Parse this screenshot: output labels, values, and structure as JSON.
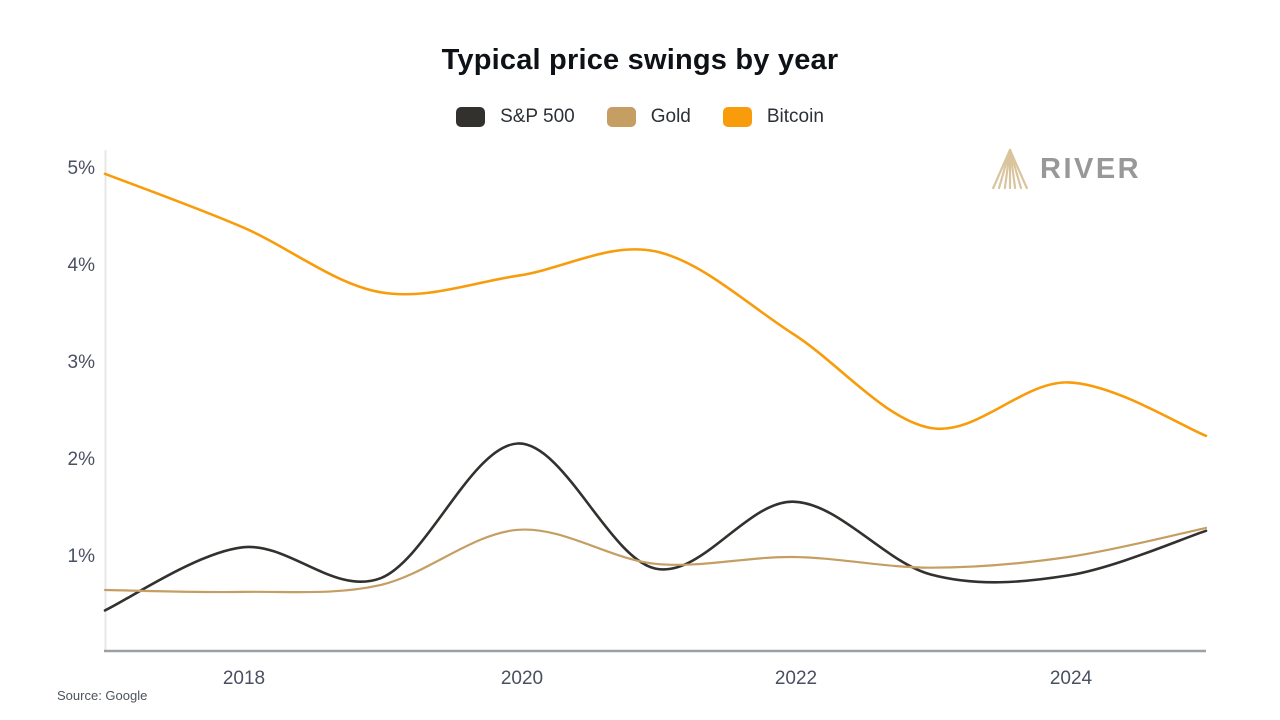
{
  "header": {
    "title": "Typical price swings by year"
  },
  "legend": {
    "items": [
      {
        "label": "S&P 500",
        "color": "#33312e"
      },
      {
        "label": "Gold",
        "color": "#c59e63"
      },
      {
        "label": "Bitcoin",
        "color": "#f99c0c"
      }
    ]
  },
  "brand": {
    "name": "RIVER",
    "logo_color": "#d9c49e",
    "text_color": "#989898"
  },
  "source": {
    "text": "Source: Google"
  },
  "chart_data": {
    "type": "line",
    "title": "Typical price swings by year",
    "xlabel": "",
    "ylabel": "",
    "x": [
      2017,
      2018,
      2019,
      2020,
      2021,
      2022,
      2023,
      2024,
      2025
    ],
    "series": [
      {
        "name": "S&P 500",
        "color": "#33312e",
        "values": [
          0.45,
          1.1,
          0.78,
          2.17,
          0.88,
          1.57,
          0.82,
          0.81,
          1.27
        ]
      },
      {
        "name": "Gold",
        "color": "#c59e63",
        "values": [
          0.66,
          0.64,
          0.71,
          1.28,
          0.93,
          1.0,
          0.89,
          1.0,
          1.3
        ]
      },
      {
        "name": "Bitcoin",
        "color": "#f99c0c",
        "values": [
          4.95,
          4.4,
          3.73,
          3.9,
          4.15,
          3.3,
          2.33,
          2.8,
          2.25
        ]
      }
    ],
    "y_tick_labels": [
      "5%",
      "4%",
      "3%",
      "2%",
      "1%"
    ],
    "x_tick_labels": [
      "2018",
      "2020",
      "2022",
      "2024"
    ],
    "ylim": [
      0,
      5.2
    ],
    "xlim": [
      2017,
      2025
    ],
    "grid": false,
    "legend_position": "top"
  }
}
